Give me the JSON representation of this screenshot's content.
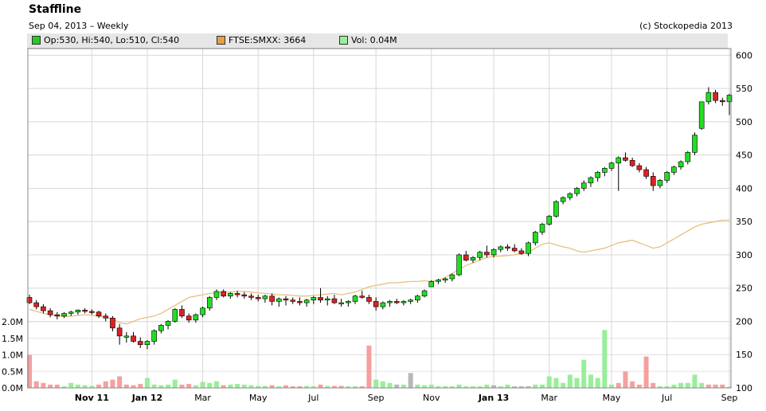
{
  "header": {
    "title": "Staffline",
    "subtitle": "Sep 04, 2013 – Weekly",
    "copyright": "(c) Stockopedia 2013"
  },
  "legend": [
    {
      "label": "Op:530, Hi:540, Lo:510, Cl:540",
      "color": "#22cc22"
    },
    {
      "label": "FTSE:SMXX: 3664",
      "color": "#e6a040"
    },
    {
      "label": "Vol: 0.04M",
      "color": "#99ee99"
    }
  ],
  "colors": {
    "up": "#22dd22",
    "down": "#dd2222",
    "wick": "#000000",
    "index_line": "#e8c080",
    "vol_up": "#99ee99",
    "vol_down": "#f5a0a0",
    "vol_neutral": "#b8b8b8",
    "grid": "#d8d8d8"
  },
  "chart_data": {
    "type": "candlestick",
    "title": "Staffline",
    "price_axis": {
      "ticks": [
        "600",
        "550",
        "500",
        "450",
        "400",
        "350",
        "300",
        "250",
        "200",
        "150",
        "100"
      ],
      "ylim": [
        100,
        610
      ]
    },
    "volume_axis": {
      "ticks": [
        "2.0M",
        "1.5M",
        "1.0M",
        "0.5M",
        "0.0M"
      ],
      "ylim": [
        0,
        2.0
      ]
    },
    "x_ticks": [
      {
        "label": "Nov 11",
        "week": 9,
        "bold": true
      },
      {
        "label": "Jan 12",
        "week": 17,
        "bold": true
      },
      {
        "label": "Mar",
        "week": 25,
        "bold": false
      },
      {
        "label": "May",
        "week": 33,
        "bold": false
      },
      {
        "label": "Jul",
        "week": 41,
        "bold": false
      },
      {
        "label": "Sep",
        "week": 50,
        "bold": false
      },
      {
        "label": "Nov",
        "week": 58,
        "bold": false
      },
      {
        "label": "Jan 13",
        "week": 67,
        "bold": true
      },
      {
        "label": "Mar",
        "week": 75,
        "bold": false
      },
      {
        "label": "May",
        "week": 84,
        "bold": false
      },
      {
        "label": "Jul",
        "week": 92,
        "bold": false
      },
      {
        "label": "Sep",
        "week": 101,
        "bold": false
      }
    ],
    "ohlc": [
      [
        236,
        240,
        226,
        228
      ],
      [
        228,
        232,
        218,
        222
      ],
      [
        222,
        226,
        212,
        216
      ],
      [
        216,
        220,
        206,
        210
      ],
      [
        210,
        214,
        203,
        208
      ],
      [
        208,
        214,
        205,
        212
      ],
      [
        212,
        216,
        208,
        214
      ],
      [
        214,
        218,
        210,
        217
      ],
      [
        217,
        220,
        212,
        215
      ],
      [
        215,
        218,
        210,
        214
      ],
      [
        214,
        216,
        205,
        208
      ],
      [
        208,
        212,
        200,
        205
      ],
      [
        205,
        208,
        185,
        190
      ],
      [
        190,
        196,
        165,
        178
      ],
      [
        178,
        184,
        168,
        178
      ],
      [
        178,
        184,
        168,
        170
      ],
      [
        170,
        176,
        160,
        165
      ],
      [
        165,
        172,
        158,
        170
      ],
      [
        170,
        188,
        165,
        186
      ],
      [
        186,
        196,
        182,
        194
      ],
      [
        194,
        202,
        188,
        200
      ],
      [
        200,
        220,
        198,
        218
      ],
      [
        218,
        224,
        205,
        208
      ],
      [
        208,
        212,
        198,
        202
      ],
      [
        202,
        212,
        198,
        210
      ],
      [
        210,
        222,
        206,
        220
      ],
      [
        220,
        238,
        216,
        236
      ],
      [
        236,
        248,
        232,
        245
      ],
      [
        245,
        248,
        236,
        238
      ],
      [
        238,
        244,
        234,
        242
      ],
      [
        242,
        246,
        236,
        240
      ],
      [
        240,
        244,
        234,
        238
      ],
      [
        238,
        242,
        232,
        236
      ],
      [
        236,
        240,
        230,
        234
      ],
      [
        234,
        240,
        228,
        238
      ],
      [
        238,
        242,
        224,
        230
      ],
      [
        230,
        236,
        222,
        234
      ],
      [
        234,
        238,
        224,
        232
      ],
      [
        232,
        236,
        226,
        230
      ],
      [
        230,
        236,
        224,
        228
      ],
      [
        228,
        234,
        222,
        232
      ],
      [
        232,
        238,
        226,
        236
      ],
      [
        236,
        250,
        228,
        232
      ],
      [
        232,
        238,
        224,
        234
      ],
      [
        234,
        240,
        226,
        228
      ],
      [
        228,
        234,
        222,
        228
      ],
      [
        228,
        232,
        222,
        230
      ],
      [
        230,
        240,
        226,
        238
      ],
      [
        238,
        246,
        234,
        236
      ],
      [
        236,
        240,
        226,
        230
      ],
      [
        230,
        236,
        216,
        222
      ],
      [
        222,
        230,
        218,
        228
      ],
      [
        228,
        232,
        222,
        230
      ],
      [
        230,
        234,
        226,
        228
      ],
      [
        228,
        232,
        224,
        230
      ],
      [
        230,
        234,
        226,
        232
      ],
      [
        232,
        240,
        228,
        238
      ],
      [
        238,
        248,
        236,
        246
      ],
      [
        252,
        262,
        252,
        260
      ],
      [
        260,
        264,
        256,
        262
      ],
      [
        262,
        266,
        258,
        264
      ],
      [
        264,
        272,
        260,
        270
      ],
      [
        270,
        302,
        268,
        300
      ],
      [
        300,
        306,
        290,
        292
      ],
      [
        292,
        298,
        288,
        296
      ],
      [
        296,
        306,
        292,
        304
      ],
      [
        304,
        314,
        296,
        300
      ],
      [
        300,
        310,
        296,
        308
      ],
      [
        308,
        314,
        304,
        312
      ],
      [
        312,
        316,
        306,
        310
      ],
      [
        310,
        316,
        304,
        306
      ],
      [
        306,
        310,
        300,
        302
      ],
      [
        302,
        320,
        298,
        318
      ],
      [
        318,
        336,
        314,
        334
      ],
      [
        334,
        348,
        330,
        346
      ],
      [
        346,
        360,
        344,
        358
      ],
      [
        358,
        382,
        356,
        380
      ],
      [
        380,
        388,
        376,
        386
      ],
      [
        386,
        394,
        382,
        392
      ],
      [
        392,
        402,
        388,
        400
      ],
      [
        400,
        412,
        396,
        408
      ],
      [
        408,
        418,
        402,
        416
      ],
      [
        416,
        426,
        410,
        424
      ],
      [
        424,
        432,
        418,
        430
      ],
      [
        430,
        440,
        426,
        438
      ],
      [
        438,
        448,
        396,
        446
      ],
      [
        446,
        454,
        440,
        442
      ],
      [
        442,
        446,
        432,
        434
      ],
      [
        434,
        438,
        424,
        428
      ],
      [
        428,
        432,
        414,
        418
      ],
      [
        418,
        424,
        396,
        404
      ],
      [
        404,
        414,
        400,
        412
      ],
      [
        412,
        426,
        408,
        424
      ],
      [
        424,
        434,
        420,
        432
      ],
      [
        432,
        442,
        428,
        440
      ],
      [
        440,
        456,
        436,
        454
      ],
      [
        454,
        484,
        450,
        480
      ],
      [
        490,
        530,
        488,
        530
      ],
      [
        530,
        552,
        526,
        544
      ],
      [
        544,
        548,
        528,
        532
      ],
      [
        532,
        536,
        524,
        530
      ],
      [
        530,
        542,
        510,
        540
      ]
    ],
    "index_line": [
      218,
      215,
      212,
      210,
      208,
      207,
      208,
      209,
      210,
      209,
      208,
      206,
      204,
      198,
      196,
      200,
      204,
      206,
      208,
      212,
      218,
      224,
      230,
      236,
      238,
      240,
      242,
      243,
      244,
      244,
      245,
      245,
      244,
      243,
      242,
      241,
      240,
      240,
      239,
      238,
      238,
      239,
      240,
      241,
      242,
      240,
      242,
      244,
      248,
      252,
      254,
      256,
      258,
      258,
      259,
      260,
      260,
      261,
      260,
      262,
      266,
      272,
      278,
      284,
      288,
      292,
      296,
      298,
      298,
      299,
      300,
      302,
      304,
      310,
      316,
      318,
      315,
      312,
      310,
      306,
      304,
      306,
      308,
      310,
      314,
      318,
      320,
      322,
      318,
      314,
      310,
      312,
      318,
      324,
      330,
      336,
      342,
      346,
      348,
      350,
      352,
      352
    ],
    "volume": [
      [
        1.0,
        "down"
      ],
      [
        0.2,
        "down"
      ],
      [
        0.15,
        "down"
      ],
      [
        0.1,
        "down"
      ],
      [
        0.1,
        "down"
      ],
      [
        0.05,
        "up"
      ],
      [
        0.15,
        "up"
      ],
      [
        0.1,
        "up"
      ],
      [
        0.08,
        "up"
      ],
      [
        0.06,
        "up"
      ],
      [
        0.1,
        "down"
      ],
      [
        0.2,
        "down"
      ],
      [
        0.25,
        "down"
      ],
      [
        0.35,
        "down"
      ],
      [
        0.1,
        "down"
      ],
      [
        0.08,
        "down"
      ],
      [
        0.12,
        "down"
      ],
      [
        0.3,
        "up"
      ],
      [
        0.1,
        "up"
      ],
      [
        0.08,
        "up"
      ],
      [
        0.1,
        "up"
      ],
      [
        0.25,
        "up"
      ],
      [
        0.1,
        "down"
      ],
      [
        0.12,
        "down"
      ],
      [
        0.08,
        "up"
      ],
      [
        0.18,
        "up"
      ],
      [
        0.15,
        "up"
      ],
      [
        0.2,
        "up"
      ],
      [
        0.08,
        "down"
      ],
      [
        0.1,
        "up"
      ],
      [
        0.12,
        "up"
      ],
      [
        0.1,
        "up"
      ],
      [
        0.08,
        "up"
      ],
      [
        0.06,
        "up"
      ],
      [
        0.06,
        "up"
      ],
      [
        0.08,
        "down"
      ],
      [
        0.05,
        "up"
      ],
      [
        0.08,
        "down"
      ],
      [
        0.05,
        "down"
      ],
      [
        0.05,
        "down"
      ],
      [
        0.06,
        "up"
      ],
      [
        0.05,
        "up"
      ],
      [
        0.1,
        "down"
      ],
      [
        0.06,
        "up"
      ],
      [
        0.06,
        "down"
      ],
      [
        0.06,
        "down"
      ],
      [
        0.05,
        "up"
      ],
      [
        0.05,
        "up"
      ],
      [
        0.05,
        "down"
      ],
      [
        1.28,
        "down"
      ],
      [
        0.25,
        "up"
      ],
      [
        0.2,
        "up"
      ],
      [
        0.15,
        "up"
      ],
      [
        0.1,
        "neutral"
      ],
      [
        0.1,
        "up"
      ],
      [
        0.45,
        "neutral"
      ],
      [
        0.1,
        "up"
      ],
      [
        0.08,
        "up"
      ],
      [
        0.1,
        "up"
      ],
      [
        0.05,
        "up"
      ],
      [
        0.05,
        "up"
      ],
      [
        0.05,
        "up"
      ],
      [
        0.1,
        "up"
      ],
      [
        0.05,
        "up"
      ],
      [
        0.05,
        "up"
      ],
      [
        0.05,
        "up"
      ],
      [
        0.1,
        "up"
      ],
      [
        0.08,
        "neutral"
      ],
      [
        0.05,
        "up"
      ],
      [
        0.1,
        "up"
      ],
      [
        0.05,
        "neutral"
      ],
      [
        0.05,
        "neutral"
      ],
      [
        0.05,
        "neutral"
      ],
      [
        0.1,
        "up"
      ],
      [
        0.1,
        "up"
      ],
      [
        0.35,
        "up"
      ],
      [
        0.3,
        "up"
      ],
      [
        0.15,
        "up"
      ],
      [
        0.4,
        "up"
      ],
      [
        0.3,
        "up"
      ],
      [
        0.85,
        "up"
      ],
      [
        0.4,
        "up"
      ],
      [
        0.3,
        "up"
      ],
      [
        1.75,
        "up"
      ],
      [
        0.1,
        "up"
      ],
      [
        0.15,
        "down"
      ],
      [
        0.5,
        "down"
      ],
      [
        0.2,
        "down"
      ],
      [
        0.1,
        "down"
      ],
      [
        0.95,
        "down"
      ],
      [
        0.15,
        "down"
      ],
      [
        0.05,
        "up"
      ],
      [
        0.05,
        "up"
      ],
      [
        0.1,
        "up"
      ],
      [
        0.15,
        "up"
      ],
      [
        0.15,
        "up"
      ],
      [
        0.4,
        "up"
      ],
      [
        0.15,
        "up"
      ],
      [
        0.1,
        "down"
      ],
      [
        0.1,
        "down"
      ],
      [
        0.1,
        "down"
      ],
      [
        0.04,
        "up"
      ]
    ]
  }
}
